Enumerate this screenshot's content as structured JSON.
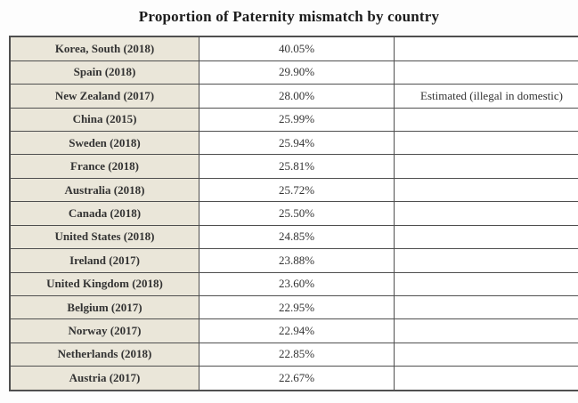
{
  "colors": {
    "page_bg": "#fdfdfd",
    "label_col_bg": "#eae6d9",
    "border": "#4f4f4f",
    "text": "#333333",
    "title_text": "#1b1b1b"
  },
  "chart_data": {
    "type": "table",
    "title": "Proportion of Paternity mismatch by country",
    "rows": [
      {
        "country": "Korea, South (2018)",
        "value": "40.05%",
        "note": ""
      },
      {
        "country": "Spain (2018)",
        "value": "29.90%",
        "note": ""
      },
      {
        "country": "New Zealand (2017)",
        "value": "28.00%",
        "note": "Estimated (illegal in domestic)"
      },
      {
        "country": "China (2015)",
        "value": "25.99%",
        "note": ""
      },
      {
        "country": "Sweden (2018)",
        "value": "25.94%",
        "note": ""
      },
      {
        "country": "France (2018)",
        "value": "25.81%",
        "note": ""
      },
      {
        "country": "Australia (2018)",
        "value": "25.72%",
        "note": ""
      },
      {
        "country": "Canada (2018)",
        "value": "25.50%",
        "note": ""
      },
      {
        "country": "United States (2018)",
        "value": "24.85%",
        "note": ""
      },
      {
        "country": "Ireland (2017)",
        "value": "23.88%",
        "note": ""
      },
      {
        "country": "United Kingdom (2018)",
        "value": "23.60%",
        "note": ""
      },
      {
        "country": "Belgium (2017)",
        "value": "22.95%",
        "note": ""
      },
      {
        "country": "Norway (2017)",
        "value": "22.94%",
        "note": ""
      },
      {
        "country": "Netherlands (2018)",
        "value": "22.85%",
        "note": ""
      },
      {
        "country": "Austria (2017)",
        "value": "22.67%",
        "note": ""
      }
    ]
  }
}
